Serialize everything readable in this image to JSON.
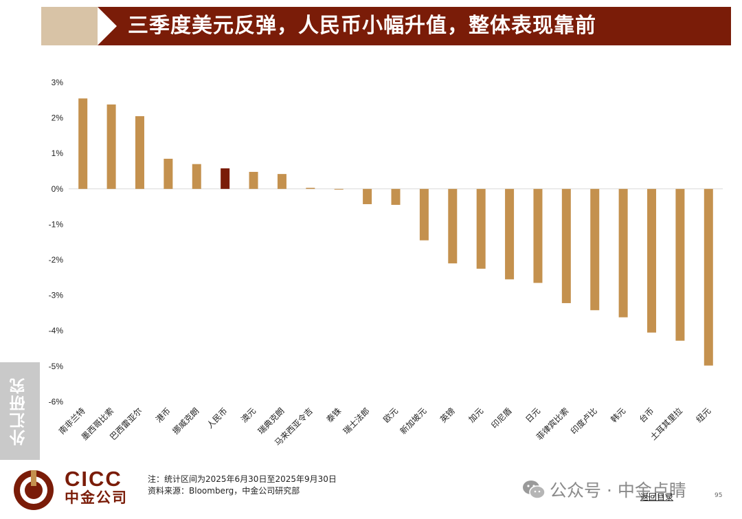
{
  "header": {
    "title": "三季度美元反弹，人民币小幅升值，整体表现靠前"
  },
  "side_tab": {
    "label": "外汇研究"
  },
  "logo": {
    "en": "CICC",
    "cn": "中金公司"
  },
  "notes": {
    "note": "注：统计区间为2025年6月30日至2025年9月30日",
    "source": "资料来源：Bloomberg，中金公司研究部"
  },
  "watermark": {
    "text": "公众号 · 中金点睛"
  },
  "footer": {
    "back_link": "返回目录",
    "page_number": "95"
  },
  "colors": {
    "bar": "#c4914e",
    "highlight": "#7a1c08",
    "header_bg": "#7a1c08",
    "header_accent": "#d8c3a6"
  },
  "icons": {
    "wechat": "wechat-icon",
    "logo": "cicc-logo-icon"
  },
  "chart_data": {
    "type": "bar",
    "title": "",
    "xlabel": "",
    "ylabel": "",
    "ylim": [
      -6,
      3
    ],
    "y_ticks": [
      3,
      2,
      1,
      0,
      -1,
      -2,
      -3,
      -4,
      -5,
      -6
    ],
    "y_tick_labels": [
      "3%",
      "2%",
      "1%",
      "0%",
      "-1%",
      "-2%",
      "-3%",
      "-4%",
      "-5%",
      "-6%"
    ],
    "highlight_category": "人民币",
    "categories": [
      "南非兰特",
      "墨西哥比索",
      "巴西雷亚尔",
      "港币",
      "挪威克朗",
      "人民币",
      "澳元",
      "瑞典克朗",
      "马来西亚令吉",
      "泰铢",
      "瑞士法郎",
      "欧元",
      "新加坡元",
      "英镑",
      "加元",
      "印尼盾",
      "日元",
      "菲律宾比索",
      "印度卢比",
      "韩元",
      "台币",
      "土耳其里拉",
      "纽元"
    ],
    "values": [
      2.55,
      2.38,
      2.05,
      0.85,
      0.7,
      0.58,
      0.48,
      0.42,
      0.03,
      -0.02,
      -0.43,
      -0.45,
      -1.45,
      -2.1,
      -2.25,
      -2.55,
      -2.65,
      -3.22,
      -3.42,
      -3.62,
      -4.05,
      -4.28,
      -4.98
    ]
  }
}
